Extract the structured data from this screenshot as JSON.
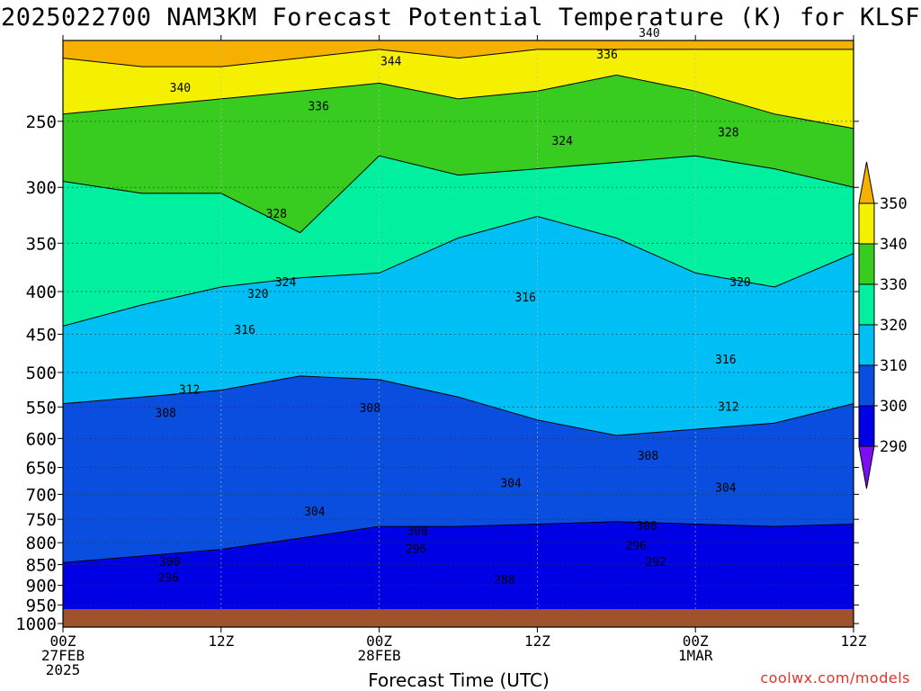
{
  "title": "2025022700 NAM3KM Forecast Potential Temperature (K) for KLSF",
  "credit": "coolwx.com/models",
  "chart_data": {
    "type": "heatmap",
    "title": "2025022700 NAM3KM Forecast Potential Temperature (K) for KLSF",
    "xlabel": "Forecast Time (UTC)",
    "ylabel": "",
    "y_axis": {
      "ticks": [
        250,
        300,
        350,
        400,
        450,
        500,
        550,
        600,
        650,
        700,
        750,
        800,
        850,
        900,
        950,
        1000
      ],
      "range": [
        200,
        1010
      ],
      "scale": "log-pressure"
    },
    "x_axis": {
      "range_hours": [
        0,
        60
      ],
      "ticks": [
        {
          "hour": 0,
          "lines": [
            "00Z",
            "27FEB",
            "2025"
          ]
        },
        {
          "hour": 12,
          "lines": [
            "12Z"
          ]
        },
        {
          "hour": 24,
          "lines": [
            "00Z",
            "28FEB"
          ]
        },
        {
          "hour": 36,
          "lines": [
            "12Z"
          ]
        },
        {
          "hour": 48,
          "lines": [
            "00Z",
            "1MAR"
          ]
        },
        {
          "hour": 60,
          "lines": [
            "12Z"
          ]
        }
      ]
    },
    "grid": true,
    "colorbar": {
      "placement": "right",
      "levels": [
        290,
        300,
        310,
        320,
        330,
        340,
        350
      ],
      "labels": [
        "290",
        "300",
        "310",
        "320",
        "330",
        "340",
        "350"
      ],
      "colors": [
        "#7b0ff0",
        "#0000e4",
        "#0a4ee0",
        "#1e7ee8",
        "#00bff5",
        "#00f0a0",
        "#37cc1f",
        "#f5f000",
        "#f5b000"
      ]
    },
    "hours": [
      0,
      6,
      12,
      18,
      24,
      30,
      36,
      42,
      48,
      54,
      60
    ],
    "series": [
      {
        "name": "290",
        "pressure": [
          990,
          985,
          975,
          985,
          995,
          1010,
          1010,
          1010,
          995,
          985,
          970
        ]
      },
      {
        "name": "300",
        "pressure": [
          845,
          830,
          815,
          790,
          765,
          765,
          760,
          755,
          760,
          765,
          760
        ]
      },
      {
        "name": "310",
        "pressure": [
          545,
          535,
          525,
          505,
          510,
          535,
          570,
          595,
          585,
          575,
          545
        ]
      },
      {
        "name": "320",
        "pressure": [
          440,
          415,
          395,
          385,
          380,
          345,
          325,
          345,
          380,
          395,
          360
        ]
      },
      {
        "name": "330",
        "pressure": [
          295,
          305,
          305,
          340,
          275,
          290,
          285,
          280,
          275,
          285,
          300
        ]
      },
      {
        "name": "340",
        "pressure": [
          245,
          240,
          235,
          230,
          225,
          235,
          230,
          220,
          230,
          245,
          255
        ]
      },
      {
        "name": "350",
        "pressure": [
          210,
          215,
          215,
          210,
          205,
          210,
          205,
          205,
          205,
          205,
          205
        ]
      }
    ],
    "contour_labels": [
      {
        "text": "340",
        "hour": 8.9,
        "pressure": 228
      },
      {
        "text": "336",
        "hour": 19.4,
        "pressure": 240
      },
      {
        "text": "344",
        "hour": 24.9,
        "pressure": 212
      },
      {
        "text": "336",
        "hour": 41.3,
        "pressure": 208
      },
      {
        "text": "340",
        "hour": 44.5,
        "pressure": 196
      },
      {
        "text": "328",
        "hour": 50.5,
        "pressure": 258
      },
      {
        "text": "324",
        "hour": 37.9,
        "pressure": 264
      },
      {
        "text": "328",
        "hour": 16.2,
        "pressure": 323
      },
      {
        "text": "324",
        "hour": 16.9,
        "pressure": 390
      },
      {
        "text": "320",
        "hour": 14.8,
        "pressure": 403
      },
      {
        "text": "320",
        "hour": 51.4,
        "pressure": 390
      },
      {
        "text": "316",
        "hour": 35.1,
        "pressure": 407
      },
      {
        "text": "316",
        "hour": 13.8,
        "pressure": 445
      },
      {
        "text": "316",
        "hour": 50.3,
        "pressure": 483
      },
      {
        "text": "312",
        "hour": 9.6,
        "pressure": 525
      },
      {
        "text": "312",
        "hour": 50.5,
        "pressure": 550
      },
      {
        "text": "308",
        "hour": 7.8,
        "pressure": 560
      },
      {
        "text": "308",
        "hour": 23.3,
        "pressure": 552
      },
      {
        "text": "308",
        "hour": 44.4,
        "pressure": 630
      },
      {
        "text": "304",
        "hour": 34,
        "pressure": 680
      },
      {
        "text": "304",
        "hour": 50.3,
        "pressure": 688
      },
      {
        "text": "304",
        "hour": 19.1,
        "pressure": 735
      },
      {
        "text": "300",
        "hour": 26.9,
        "pressure": 775
      },
      {
        "text": "300",
        "hour": 44.3,
        "pressure": 765
      },
      {
        "text": "296",
        "hour": 26.8,
        "pressure": 815
      },
      {
        "text": "296",
        "hour": 43.5,
        "pressure": 808
      },
      {
        "text": "292",
        "hour": 45,
        "pressure": 845
      },
      {
        "text": "300",
        "hour": 8.1,
        "pressure": 845
      },
      {
        "text": "296",
        "hour": 8,
        "pressure": 882
      },
      {
        "text": "288",
        "hour": 33.5,
        "pressure": 888
      }
    ],
    "ground_color": "#a0522d"
  }
}
